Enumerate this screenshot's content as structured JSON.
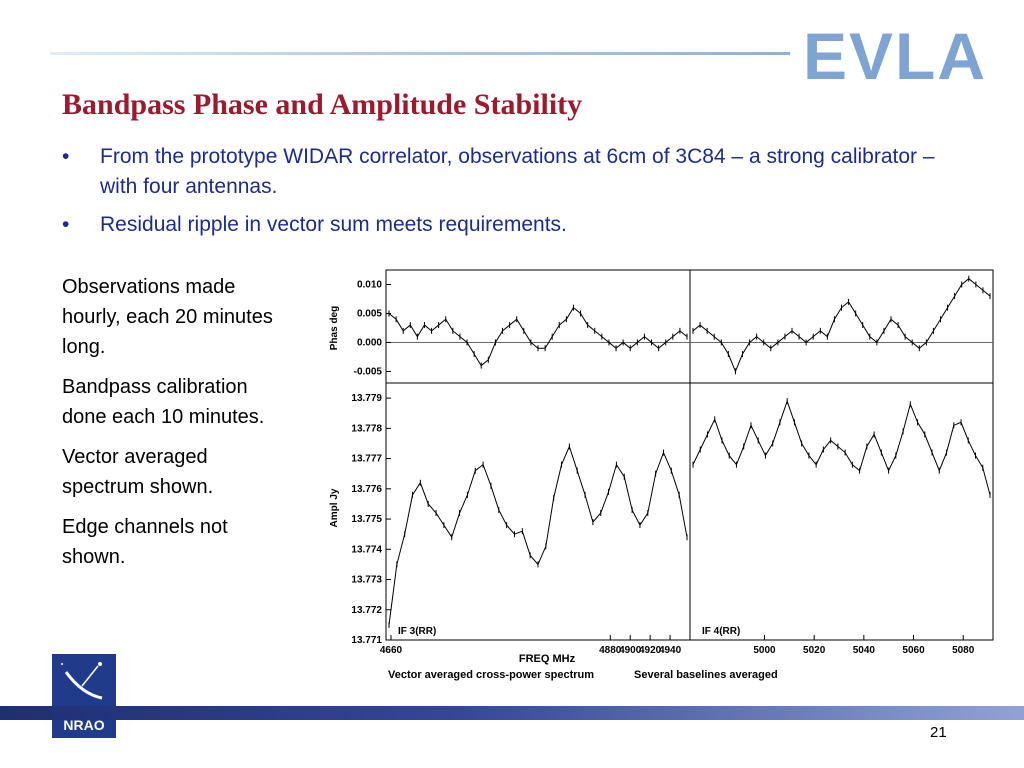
{
  "header": {
    "logo_text": "EVLA"
  },
  "slide": {
    "title": "Bandpass Phase and Amplitude Stability",
    "bullets": [
      "From the prototype WIDAR correlator, observations at 6cm of 3C84 – a strong calibrator – with four antennas.",
      "Residual ripple in vector sum meets requirements."
    ],
    "bullet_glyph": "•",
    "side_notes": [
      "Observations made hourly, each 20 minutes long.",
      "Bandpass calibration done each 10 minutes.",
      "Vector averaged spectrum shown.",
      "Edge channels not shown."
    ],
    "page_number": "21"
  },
  "footer": {
    "logo_text": "NRAO"
  },
  "chart_data": {
    "type": "scatter",
    "xlabel": "FREQ MHz",
    "caption_left": "Vector averaged cross-power spectrum",
    "caption_right": "Several baselines averaged",
    "panels": [
      {
        "name": "IF 3(RR)",
        "xlim": [
          4655,
          4960
        ],
        "xticks": [
          4660,
          4880,
          4900,
          4920,
          4940
        ]
      },
      {
        "name": "IF 4(RR)",
        "xlim": [
          4970,
          5092
        ],
        "xticks": [
          5000,
          5020,
          5040,
          5060,
          5080
        ]
      }
    ],
    "phase": {
      "ylabel": "Phas deg",
      "ylim": [
        -0.007,
        0.0125
      ],
      "yticks": [
        "0.010",
        "0.005",
        "0.000",
        "-0.005"
      ],
      "ytick_values": [
        0.01,
        0.005,
        0.0,
        -0.005
      ],
      "series": [
        {
          "panel": 0,
          "y": [
            0.005,
            0.004,
            0.002,
            0.003,
            0.001,
            0.003,
            0.002,
            0.003,
            0.004,
            0.002,
            0.001,
            0.0,
            -0.002,
            -0.004,
            -0.003,
            0.0,
            0.002,
            0.003,
            0.004,
            0.002,
            0.0,
            -0.001,
            -0.001,
            0.001,
            0.003,
            0.004,
            0.006,
            0.005,
            0.003,
            0.002,
            0.001,
            0.0,
            -0.001,
            0.0,
            -0.001,
            0.0,
            0.001,
            0.0,
            -0.001,
            0.0,
            0.001,
            0.002,
            0.001
          ]
        },
        {
          "panel": 1,
          "y": [
            0.002,
            0.003,
            0.002,
            0.001,
            0.0,
            -0.002,
            -0.005,
            -0.002,
            0.0,
            0.001,
            0.0,
            -0.001,
            0.0,
            0.001,
            0.002,
            0.001,
            0.0,
            0.001,
            0.002,
            0.001,
            0.004,
            0.006,
            0.007,
            0.005,
            0.003,
            0.001,
            0.0,
            0.002,
            0.004,
            0.003,
            0.001,
            0.0,
            -0.001,
            0.0,
            0.002,
            0.004,
            0.006,
            0.008,
            0.01,
            0.011,
            0.01,
            0.009,
            0.008
          ]
        }
      ]
    },
    "amplitude": {
      "ylabel": "Ampl Jy",
      "ylim": [
        13.771,
        13.7795
      ],
      "yticks": [
        "13.779",
        "13.778",
        "13.777",
        "13.776",
        "13.775",
        "13.774",
        "13.773",
        "13.772",
        "13.771"
      ],
      "ytick_values": [
        13.779,
        13.778,
        13.777,
        13.776,
        13.775,
        13.774,
        13.773,
        13.772,
        13.771
      ],
      "series": [
        {
          "panel": 0,
          "y": [
            13.7715,
            13.7735,
            13.7745,
            13.7758,
            13.7762,
            13.7755,
            13.7752,
            13.7748,
            13.7744,
            13.7752,
            13.7758,
            13.7766,
            13.7768,
            13.7761,
            13.7753,
            13.7748,
            13.7745,
            13.7746,
            13.7738,
            13.7735,
            13.7741,
            13.7757,
            13.7768,
            13.7774,
            13.7766,
            13.7758,
            13.7749,
            13.7752,
            13.7759,
            13.7768,
            13.7764,
            13.7753,
            13.7748,
            13.7752,
            13.7765,
            13.7772,
            13.7766,
            13.7758,
            13.7744
          ]
        },
        {
          "panel": 1,
          "y": [
            13.7768,
            13.7773,
            13.7778,
            13.7783,
            13.7776,
            13.7771,
            13.7768,
            13.7774,
            13.7781,
            13.7776,
            13.7771,
            13.7775,
            13.7782,
            13.7789,
            13.7782,
            13.7775,
            13.7771,
            13.7768,
            13.7773,
            13.7776,
            13.7774,
            13.7772,
            13.7768,
            13.7766,
            13.7774,
            13.7778,
            13.7772,
            13.7766,
            13.7771,
            13.7779,
            13.7788,
            13.7782,
            13.7778,
            13.7772,
            13.7766,
            13.7772,
            13.7781,
            13.7782,
            13.7776,
            13.7771,
            13.7767,
            13.7758
          ]
        }
      ]
    }
  }
}
